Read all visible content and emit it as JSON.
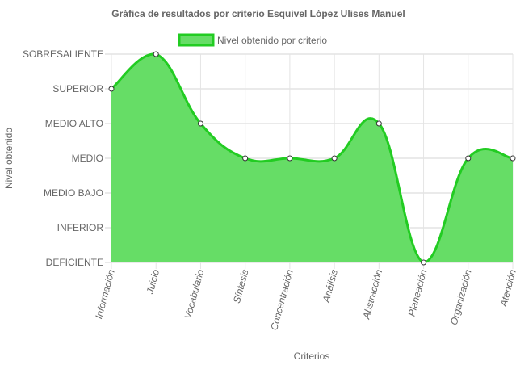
{
  "chart_data": {
    "type": "area",
    "title": "Gráfica de resultados por criterio Esquivel López Ulises Manuel",
    "xlabel": "Criterios",
    "ylabel": "Nivel obtenido",
    "categories": [
      "Información",
      "Juicio",
      "Vocabulario",
      "Síntesis",
      "Concentración",
      "Análisis",
      "Abstracción",
      "Planeación",
      "Organización",
      "Atención"
    ],
    "y_levels": [
      "DEFICIENTE",
      "INFERIOR",
      "MEDIO BAJO",
      "MEDIO",
      "MEDIO ALTO",
      "SUPERIOR",
      "SOBRESALIENTE"
    ],
    "ylim": [
      0,
      6
    ],
    "grid": true,
    "legend_position": "top",
    "series": [
      {
        "name": "Nivel obtenido por criterio",
        "values": [
          5,
          6,
          4,
          3,
          3,
          3,
          4,
          0,
          3,
          3
        ],
        "fill_color": "#66dd66",
        "line_color": "#22cc22"
      }
    ]
  }
}
